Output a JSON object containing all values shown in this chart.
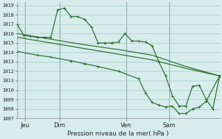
{
  "bg_color": "#d6edec",
  "grid_color": "#a0c8c8",
  "line_color": "#2d6b2d",
  "marker_color": "#2d6b2d",
  "ylabel_min": 1007,
  "ylabel_max": 1019,
  "xlabel": "Pression niveau de la mer( hPa )",
  "day_labels": [
    "Jeu",
    "Dim",
    "Ven",
    "Sam"
  ],
  "figsize": [
    3.2,
    2.0
  ],
  "dpi": 100,
  "series1_x": [
    0,
    1,
    2,
    3,
    4,
    5,
    6,
    7,
    8,
    9,
    10,
    11,
    12,
    13,
    14,
    15,
    16,
    17,
    18,
    19,
    20,
    21,
    22,
    23,
    24,
    25,
    26,
    27,
    28,
    29,
    30
  ],
  "series1_y": [
    1017.0,
    1015.8,
    1015.7,
    1015.6,
    1015.6,
    1015.6,
    1018.5,
    1018.7,
    1017.8,
    1017.8,
    1017.5,
    1016.7,
    1015.0,
    1015.0,
    1015.0,
    1015.1,
    1016.0,
    1015.2,
    1015.2,
    1015.1,
    1014.7,
    1013.0,
    1011.5,
    1009.4,
    1008.3,
    1008.3,
    1010.4,
    1010.5,
    1009.0,
    1008.0,
    1011.5
  ],
  "series2_x": [
    0,
    5,
    10,
    15,
    20,
    25,
    30
  ],
  "series2_y": [
    1016.0,
    1015.4,
    1014.8,
    1014.3,
    1013.7,
    1012.5,
    1011.5
  ],
  "series3_x": [
    0,
    5,
    10,
    15,
    20,
    25,
    30
  ],
  "series3_y": [
    1015.6,
    1015.0,
    1014.4,
    1013.8,
    1013.2,
    1012.3,
    1011.5
  ],
  "series4_x": [
    0,
    3,
    5,
    8,
    10,
    12,
    15,
    18,
    19,
    20,
    21,
    22,
    23,
    24,
    25,
    26,
    27,
    28,
    30
  ],
  "series4_y": [
    1014.1,
    1013.7,
    1013.5,
    1013.1,
    1012.8,
    1012.5,
    1012.0,
    1011.2,
    1009.7,
    1008.7,
    1008.4,
    1008.2,
    1008.3,
    1007.5,
    1007.5,
    1008.0,
    1008.2,
    1008.8,
    1011.5
  ]
}
